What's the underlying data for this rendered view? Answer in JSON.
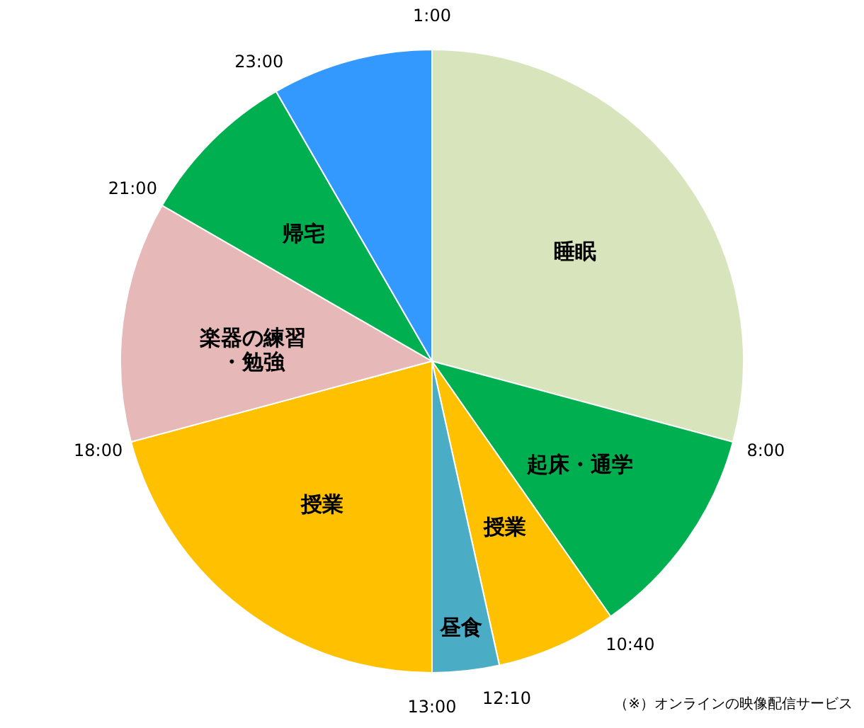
{
  "chart_data": {
    "type": "pie",
    "categories": [
      "睡眠",
      "起床・通学",
      "授業",
      "昼食",
      "授業",
      "楽器の練習・勉強",
      "帰宅",
      null
    ],
    "values": [
      29.17,
      11.11,
      6.25,
      3.47,
      20.83,
      12.5,
      8.33,
      8.34
    ],
    "colors": [
      "#d8e4bc",
      "#00b050",
      "#ffc000",
      "#4bacc6",
      "#ffc000",
      "#e6b8b7",
      "#00b050",
      "#3399ff"
    ],
    "annotations": [
      "1:00",
      "8:00",
      "10:40",
      "12:10",
      "13:00",
      "18:00",
      "21:00",
      "23:00",
      "（※）オンラインの映像配信サービス"
    ]
  }
}
